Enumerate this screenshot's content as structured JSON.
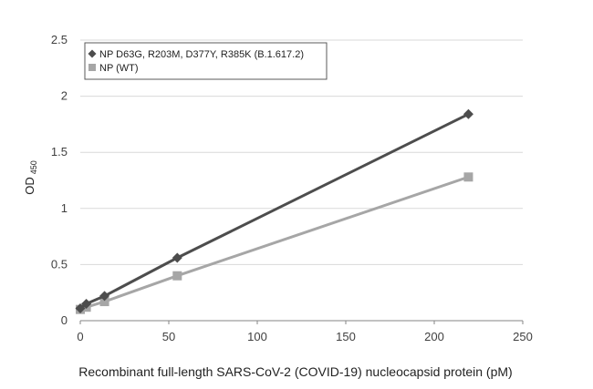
{
  "chart_data": {
    "type": "line",
    "xlabel": "Recombinant full-length SARS-CoV-2 (COVID-19) nucleocapsid protein (pM)",
    "ylabel": "OD",
    "ylabel_subscript": "450",
    "xlim": [
      0,
      250
    ],
    "ylim": [
      0,
      2.5
    ],
    "xticks": [
      "0",
      "50",
      "100",
      "150",
      "200",
      "250"
    ],
    "yticks": [
      "0",
      "0.5",
      "1",
      "1.5",
      "2",
      "2.5"
    ],
    "grid": "horizontal",
    "legend_position": "top-left",
    "series": [
      {
        "name": "NP D63G, R203M, D377Y, R385K (B.1.617.2)",
        "color": "#4d4d4d",
        "marker": "diamond",
        "x": [
          0,
          3.4,
          13.7,
          54.8,
          219.3
        ],
        "y": [
          0.11,
          0.15,
          0.22,
          0.56,
          1.84
        ]
      },
      {
        "name": "NP (WT)",
        "color": "#a6a6a6",
        "marker": "square",
        "x": [
          0,
          3.4,
          13.7,
          54.8,
          219.3
        ],
        "y": [
          0.1,
          0.12,
          0.17,
          0.4,
          1.28
        ]
      }
    ]
  }
}
